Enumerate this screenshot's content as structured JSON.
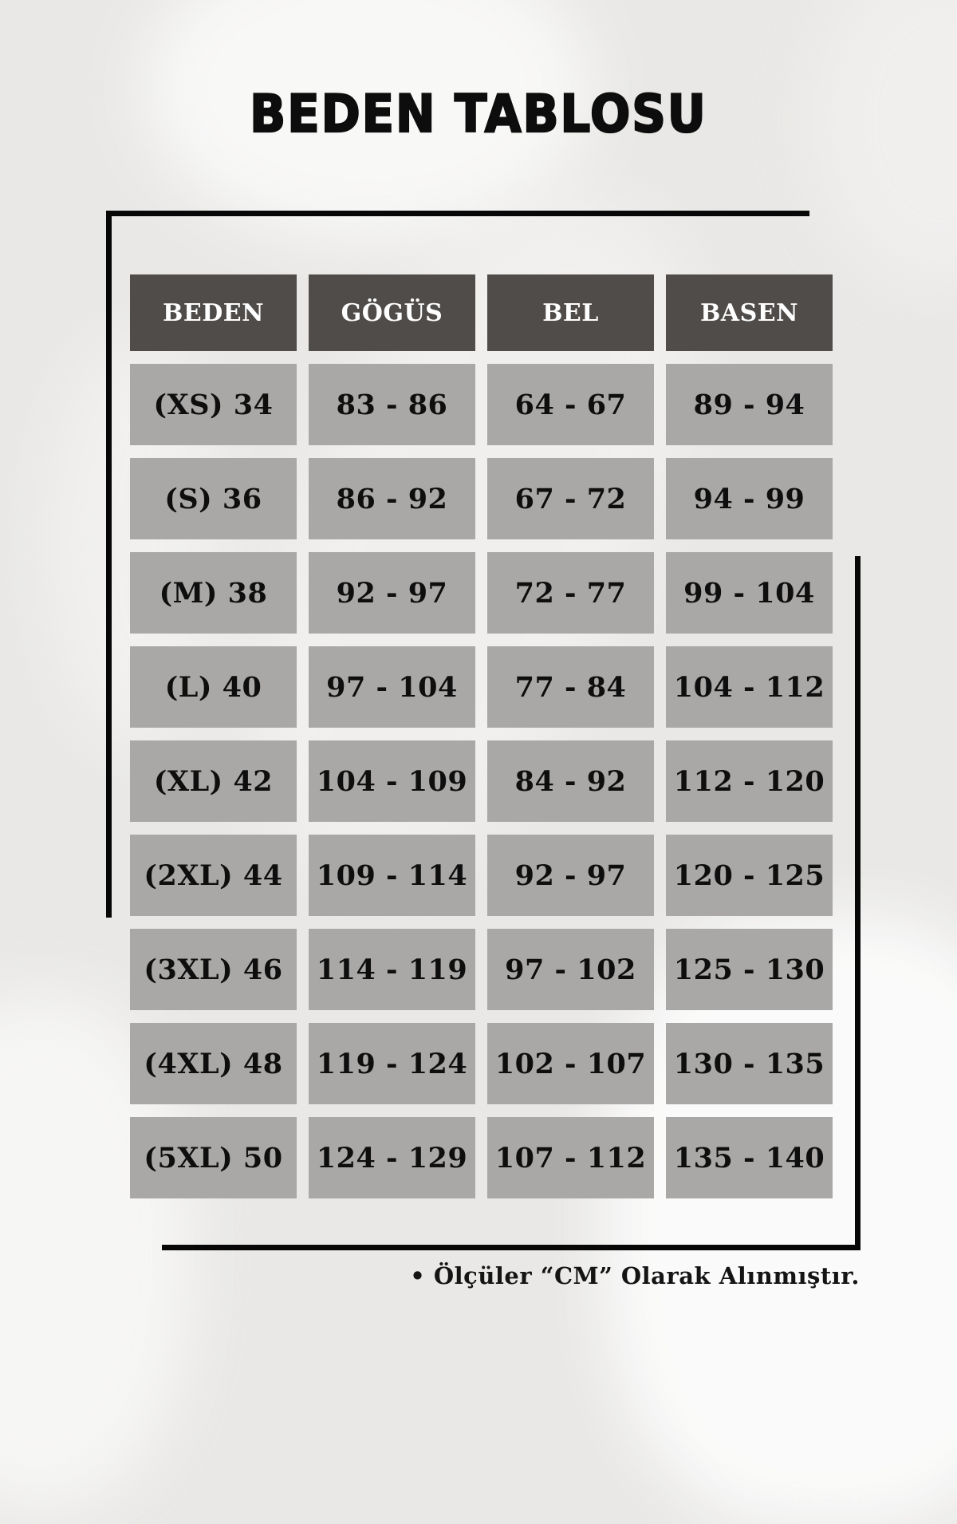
{
  "title": "BEDEN TABLOSU",
  "table": {
    "headers": [
      "BEDEN",
      "GÖGÜS",
      "BEL",
      "BASEN"
    ],
    "rows": [
      [
        "(XS) 34",
        "83 - 86",
        "64 - 67",
        "89 - 94"
      ],
      [
        "(S) 36",
        "86 - 92",
        "67 - 72",
        "94 - 99"
      ],
      [
        "(M) 38",
        "92 - 97",
        "72 - 77",
        "99 - 104"
      ],
      [
        "(L) 40",
        "97 - 104",
        "77 - 84",
        "104 - 112"
      ],
      [
        "(XL) 42",
        "104 - 109",
        "84 - 92",
        "112 - 120"
      ],
      [
        "(2XL) 44",
        "109 - 114",
        "92 - 97",
        "120 - 125"
      ],
      [
        "(3XL) 46",
        "114 - 119",
        "97 - 102",
        "125 - 130"
      ],
      [
        "(4XL) 48",
        "119 - 124",
        "102 - 107",
        "130 - 135"
      ],
      [
        "(5XL) 50",
        "124 - 129",
        "107 - 112",
        "135 - 140"
      ]
    ]
  },
  "footnote": "• Ölçüler “CM” Olarak Alınmıştır.",
  "colors": {
    "background": "#e9e8e6",
    "header_bg": "#4f4c4a",
    "header_text": "#ffffff",
    "cell_bg": "#a9a8a6",
    "cell_text": "#0e0e0e",
    "line": "#070707"
  }
}
